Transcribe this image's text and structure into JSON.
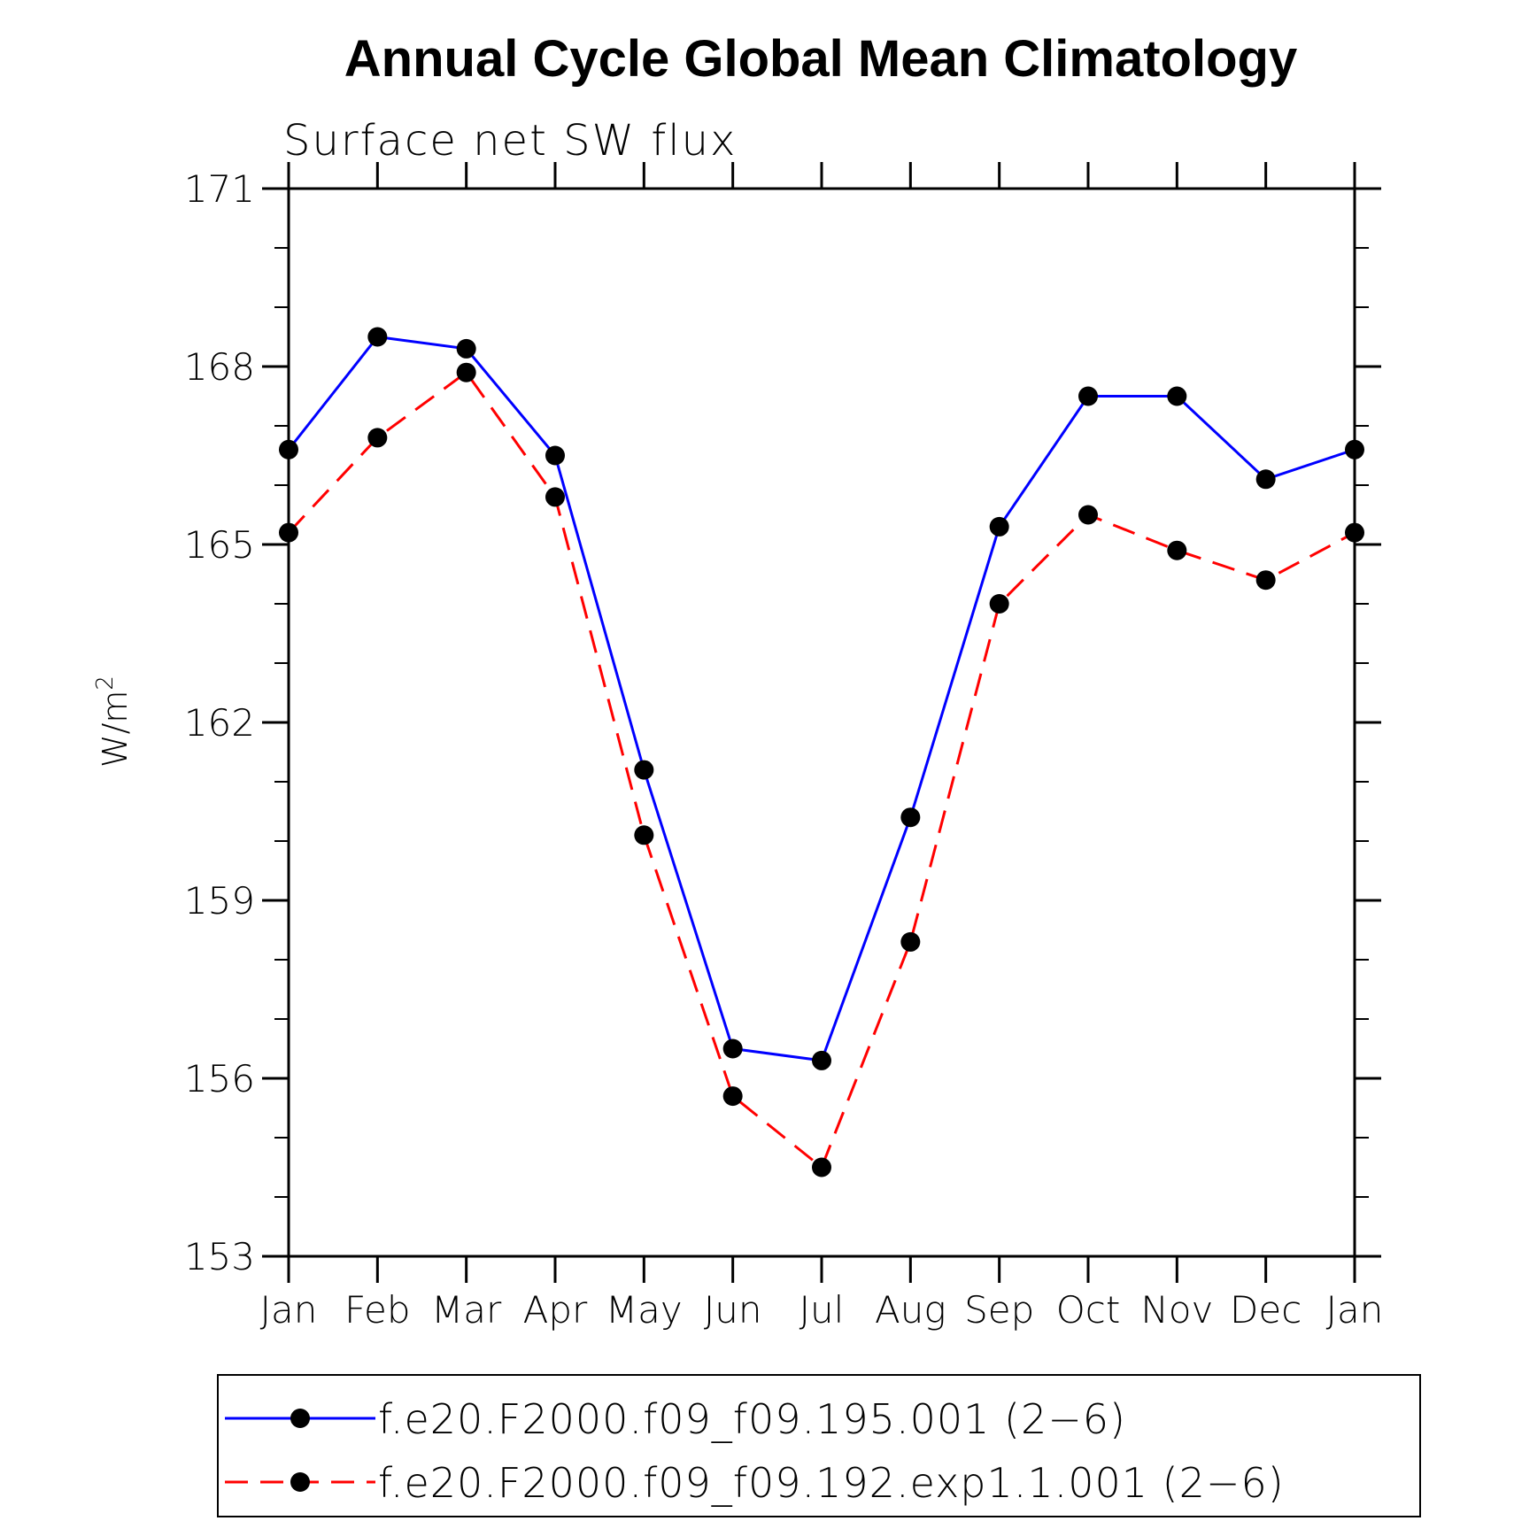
{
  "chart_data": {
    "type": "line",
    "title": "Annual Cycle Global Mean Climatology",
    "subtitle": "Surface net SW flux",
    "ylabel": "W/m",
    "ylabel_superscript": "2",
    "xlabel": "",
    "ylim": [
      153,
      171
    ],
    "yticks": [
      "153",
      "156",
      "159",
      "162",
      "165",
      "168",
      "171"
    ],
    "categories": [
      "Jan",
      "Feb",
      "Mar",
      "Apr",
      "May",
      "Jun",
      "Jul",
      "Aug",
      "Sep",
      "Oct",
      "Nov",
      "Dec",
      "Jan"
    ],
    "grid": false,
    "legend_position": "bottom",
    "series": [
      {
        "name": "f.e20.F2000.f09_f09.195.001 (2−6)",
        "color": "#0000ff",
        "dash": "solid",
        "values": [
          166.6,
          168.5,
          168.3,
          166.5,
          161.2,
          156.5,
          156.3,
          160.4,
          165.3,
          167.5,
          167.5,
          166.1,
          166.6
        ]
      },
      {
        "name": "f.e20.F2000.f09_f09.192.exp1.1.001 (2−6)",
        "color": "#ff0000",
        "dash": "dashed",
        "values": [
          165.2,
          166.8,
          167.9,
          165.8,
          160.1,
          155.7,
          154.5,
          158.3,
          164.0,
          165.5,
          164.9,
          164.4,
          165.2
        ]
      }
    ],
    "marker_color": "#000000"
  }
}
